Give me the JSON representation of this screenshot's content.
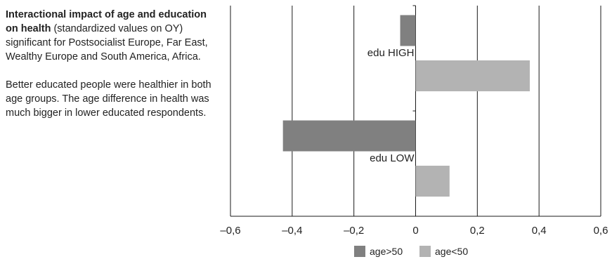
{
  "description": {
    "title_bold": "Interactional impact of age and education on health",
    "title_rest": " (standardized values on OY) significant for Postsocialist Europe, Far East, Wealthy Europe and South America, Africa.",
    "note": "Better educated people were healthier in both age groups. The age difference in health was much bigger in lower educated respondents."
  },
  "chart_data": {
    "type": "bar",
    "orientation": "horizontal",
    "categories": [
      "edu HIGH",
      "edu LOW"
    ],
    "series": [
      {
        "name": "age>50",
        "values": [
          -0.05,
          -0.43
        ],
        "color": "#808080"
      },
      {
        "name": "age<50",
        "values": [
          0.37,
          0.11
        ],
        "color": "#b3b3b3"
      }
    ],
    "xlim": [
      -0.6,
      0.6
    ],
    "xticks": [
      -0.6,
      -0.4,
      -0.2,
      0,
      0.2,
      0.4,
      0.6
    ],
    "xtick_labels": [
      "–0,6",
      "–0,4",
      "–0,2",
      "0",
      "0,2",
      "0,4",
      "0,6"
    ],
    "grid": true,
    "legend": "bottom-center"
  }
}
